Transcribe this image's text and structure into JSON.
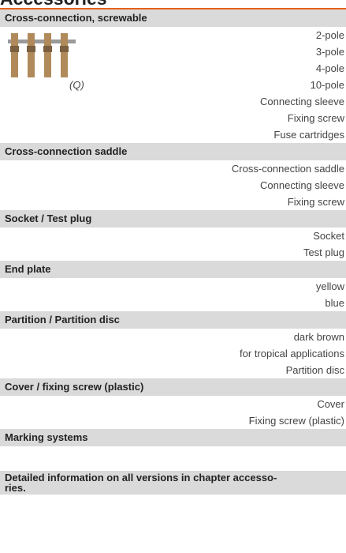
{
  "title": "Accessories",
  "sections": [
    {
      "header": "Cross-connection, screwable",
      "image_caption": "(Q)",
      "items": [
        "2-pole",
        "3-pole",
        "4-pole",
        "10-pole",
        "Connecting sleeve",
        "Fixing screw",
        "Fuse cartridges"
      ]
    },
    {
      "header": "Cross-connection saddle",
      "items": [
        "Cross-connection saddle",
        "Connecting sleeve",
        "Fixing screw"
      ]
    },
    {
      "header": "Socket / Test plug",
      "items": [
        "Socket",
        "Test plug"
      ]
    },
    {
      "header": "End plate",
      "items": [
        "yellow",
        "blue"
      ]
    },
    {
      "header": "Partition / Partition disc",
      "items": [
        "dark brown",
        "for tropical applications",
        "Partition disc"
      ]
    },
    {
      "header": "Cover / fixing screw (plastic)",
      "items": [
        "Cover",
        "Fixing screw (plastic)"
      ]
    },
    {
      "header": "Marking systems",
      "items": []
    }
  ],
  "footer": [
    "Detailed information on all versions in chapter accesso-",
    "ries."
  ]
}
